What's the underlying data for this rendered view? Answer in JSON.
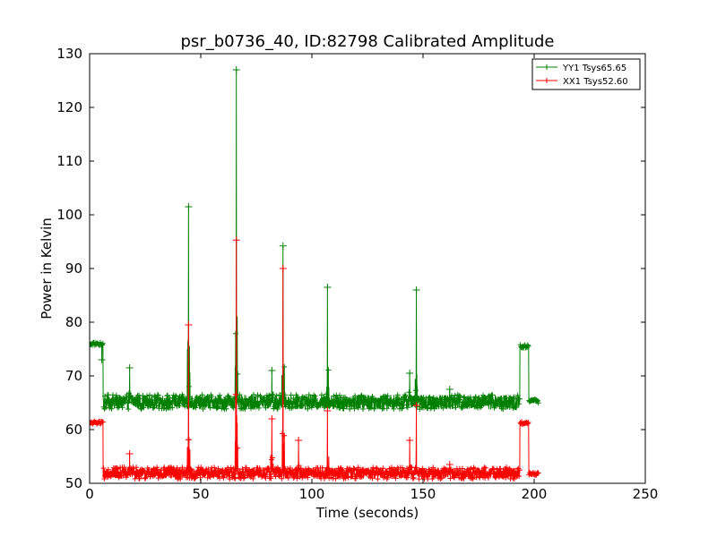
{
  "chart_data": {
    "type": "line",
    "title": "psr_b0736_40, ID:82798 Calibrated Amplitude",
    "xlabel": "Time (seconds)",
    "ylabel": "Power in Kelvin",
    "xlim": [
      0,
      250
    ],
    "ylim": [
      50,
      130
    ],
    "xticks": [
      "0",
      "50",
      "100",
      "150",
      "200",
      "250"
    ],
    "yticks": [
      "50",
      "60",
      "70",
      "80",
      "90",
      "100",
      "110",
      "120",
      "130"
    ],
    "grid": false,
    "legend_position": "top-right",
    "series": [
      {
        "name": "YY1 Tsys65.65",
        "color": "#008000",
        "marker": "+",
        "base_level": 65.2,
        "noise_range": [
          63.8,
          66.5
        ],
        "calibration_segments": [
          {
            "x": [
              0,
              6
            ],
            "level": 76.0
          },
          {
            "x": [
              193.5,
              197.5
            ],
            "level": 75.5
          }
        ],
        "tail_segment": {
          "x": [
            197.5,
            202
          ],
          "level": 65.3
        },
        "data_span": [
          0,
          202
        ],
        "spikes": [
          {
            "x": 5.5,
            "y": 73
          },
          {
            "x": 18,
            "y": 71.5
          },
          {
            "x": 44.5,
            "y": 101.5
          },
          {
            "x": 66,
            "y": 127
          },
          {
            "x": 82,
            "y": 71
          },
          {
            "x": 87,
            "y": 94.2
          },
          {
            "x": 107,
            "y": 86.5
          },
          {
            "x": 144,
            "y": 70.5
          },
          {
            "x": 147,
            "y": 86
          },
          {
            "x": 162,
            "y": 67.5
          }
        ]
      },
      {
        "name": "XX1 Tsys52.60",
        "color": "#ff0000",
        "marker": "+",
        "base_level": 51.8,
        "noise_range": [
          50.8,
          53.0
        ],
        "calibration_segments": [
          {
            "x": [
              0,
              6
            ],
            "level": 61.3
          },
          {
            "x": [
              193.5,
              197.5
            ],
            "level": 61.2
          }
        ],
        "tail_segment": {
          "x": [
            197.5,
            202
          ],
          "level": 51.8
        },
        "data_span": [
          0,
          202
        ],
        "spikes": [
          {
            "x": 18,
            "y": 55.5
          },
          {
            "x": 44.5,
            "y": 79.5
          },
          {
            "x": 66,
            "y": 95.3
          },
          {
            "x": 82,
            "y": 62
          },
          {
            "x": 87,
            "y": 90
          },
          {
            "x": 94,
            "y": 58
          },
          {
            "x": 107,
            "y": 63.5
          },
          {
            "x": 144,
            "y": 58
          },
          {
            "x": 147,
            "y": 64.5
          },
          {
            "x": 162,
            "y": 53.5
          }
        ]
      }
    ]
  }
}
